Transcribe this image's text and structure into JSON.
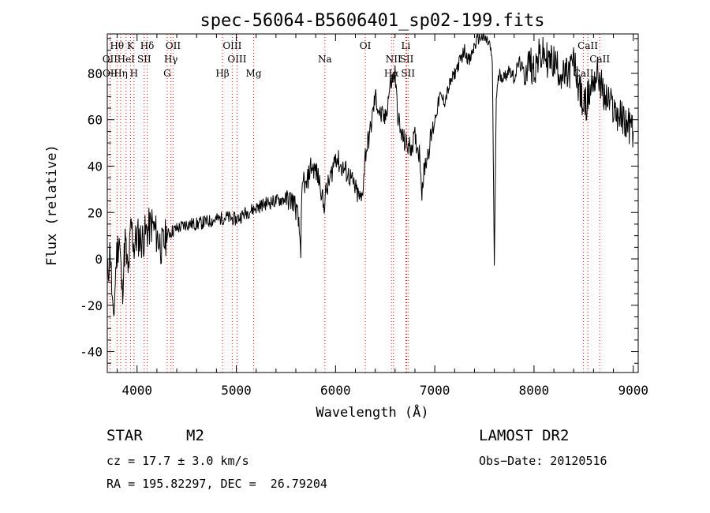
{
  "chart_data": {
    "type": "line",
    "title": "spec-56064-B5606401_sp02-199.fits",
    "xlabel": "Wavelength (Å)",
    "ylabel": "Flux (relative)",
    "xlim": [
      3700,
      9050
    ],
    "ylim": [
      -49,
      97
    ],
    "xticks": [
      4000,
      5000,
      6000,
      7000,
      8000,
      9000
    ],
    "yticks": [
      -40,
      -20,
      0,
      20,
      40,
      60,
      80
    ],
    "grid": false,
    "line_color": "#000000",
    "marker_color": "#ff0000",
    "series": [
      {
        "x": [
          3700,
          3730,
          3760,
          3790,
          3820,
          3850,
          3880,
          3910,
          3940,
          3970,
          4000,
          4050,
          4100,
          4150,
          4200,
          4250,
          4300,
          4350,
          4400,
          4450,
          4500,
          4600,
          4700,
          4800,
          4900,
          5000,
          5100,
          5200,
          5300,
          5400,
          5500,
          5580,
          5620,
          5650,
          5660,
          5680,
          5700,
          5750,
          5800,
          5850,
          5880,
          5900,
          5950,
          6000,
          6050,
          6100,
          6150,
          6200,
          6230,
          6260,
          6280,
          6300,
          6350,
          6400,
          6450,
          6500,
          6550,
          6600,
          6620,
          6650,
          6700,
          6750,
          6800,
          6850,
          6870,
          6900,
          6950,
          7000,
          7050,
          7100,
          7150,
          7200,
          7250,
          7300,
          7350,
          7400,
          7450,
          7500,
          7550,
          7580,
          7600,
          7620,
          7650,
          7700,
          7750,
          7800,
          7850,
          7900,
          7950,
          8000,
          8050,
          8100,
          8150,
          8200,
          8250,
          8300,
          8350,
          8400,
          8450,
          8500,
          8550,
          8600,
          8650,
          8700,
          8750,
          8800,
          8850,
          8900,
          8950,
          9000
        ],
        "values": [
          -10,
          5,
          -30,
          0,
          10,
          -15,
          8,
          -8,
          15,
          5,
          10,
          8,
          12,
          15,
          10,
          5,
          10,
          12,
          13,
          14,
          15,
          15,
          16,
          17,
          18,
          17,
          20,
          22,
          24,
          25,
          26,
          25,
          18,
          5,
          25,
          35,
          30,
          40,
          38,
          32,
          22,
          28,
          35,
          45,
          40,
          38,
          35,
          30,
          27,
          25,
          33,
          45,
          55,
          70,
          62,
          60,
          75,
          80,
          66,
          55,
          50,
          48,
          52,
          45,
          30,
          40,
          50,
          60,
          70,
          68,
          75,
          80,
          85,
          90,
          85,
          92,
          96,
          95,
          93,
          85,
          -3,
          70,
          80,
          78,
          82,
          78,
          85,
          80,
          85,
          82,
          87,
          88,
          85,
          85,
          82,
          78,
          80,
          85,
          75,
          65,
          70,
          78,
          80,
          70,
          68,
          65,
          62,
          60,
          58,
          55
        ]
      }
    ],
    "lines_top": [
      {
        "label": "Hθ",
        "x": 3798
      },
      {
        "label": "K",
        "x": 3934
      },
      {
        "label": "Hδ",
        "x": 4102
      },
      {
        "label": "OII",
        "x": 4363
      },
      {
        "label": "OIII",
        "x": 4959
      },
      {
        "label": "OI",
        "x": 6300
      },
      {
        "label": "Li",
        "x": 6708
      },
      {
        "label": "CaII",
        "x": 8542
      }
    ],
    "lines_mid": [
      {
        "label": "OII",
        "x": 3727
      },
      {
        "label": "HeI",
        "x": 3889
      },
      {
        "label": "SII",
        "x": 4072
      },
      {
        "label": "Hγ",
        "x": 4341
      },
      {
        "label": "OIII",
        "x": 5007
      },
      {
        "label": "Na",
        "x": 5893
      },
      {
        "label": "NII",
        "x": 6584
      },
      {
        "label": "SII",
        "x": 6717
      },
      {
        "label": "CaII",
        "x": 8662
      }
    ],
    "lines_low": [
      {
        "label": "OII",
        "x": 3729
      },
      {
        "label": "Hη",
        "x": 3835
      },
      {
        "label": "H",
        "x": 3969
      },
      {
        "label": "G",
        "x": 4304
      },
      {
        "label": "Hβ",
        "x": 4861
      },
      {
        "label": "Mg",
        "x": 5175
      },
      {
        "label": "Hα",
        "x": 6563
      },
      {
        "label": "SII",
        "x": 6731
      },
      {
        "label": "CaII",
        "x": 8498
      }
    ]
  },
  "info": {
    "object_class": "STAR",
    "subclass": "M2",
    "survey": "LAMOST DR2",
    "redshift": "cz = 17.7 ± 3.0 km/s",
    "obs_date": "Obs−Date: 20120516",
    "coords": "RA = 195.82297, DEC =  26.79204"
  }
}
